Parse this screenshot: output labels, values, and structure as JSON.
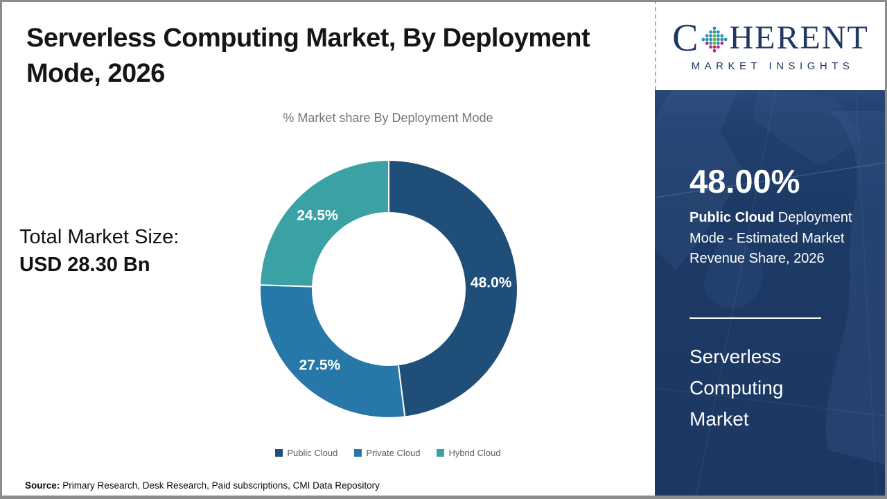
{
  "page": {
    "title": "Serverless Computing Market, By Deployment Mode, 2026",
    "title_lines": [
      "Serverless Computing Market, By Deployment",
      "Mode, 2026"
    ],
    "source_label": "Source:",
    "source_text": "Primary Research, Desk Research, Paid subscriptions, CMI Data Repository"
  },
  "total_market": {
    "label": "Total Market Size:",
    "value": "USD 28.30 Bn"
  },
  "chart_data": {
    "type": "pie",
    "donut": true,
    "title": "% Market share By Deployment Mode",
    "categories": [
      "Public Cloud",
      "Private Cloud",
      "Hybrid Cloud"
    ],
    "values": [
      48.0,
      27.5,
      24.5
    ],
    "slice_labels": [
      "48.0%",
      "27.5%",
      "24.5%"
    ],
    "colors": [
      "#1f4e79",
      "#2778a8",
      "#3aa2a4"
    ],
    "legend_position": "bottom",
    "start_angle_deg": 0,
    "direction": "clockwise"
  },
  "sidebar": {
    "logo": {
      "text_c": "C",
      "text_rest": "HERENT",
      "tagline": "MARKET INSIGHTS",
      "globe_icon": "dotted-globe"
    },
    "stat_value": "48.00%",
    "stat_desc_bold": "Public Cloud",
    "stat_desc_rest": " Deployment Mode - Estimated Market Revenue Share, 2026",
    "market_name_lines": [
      "Serverless",
      "Computing",
      "Market"
    ]
  }
}
